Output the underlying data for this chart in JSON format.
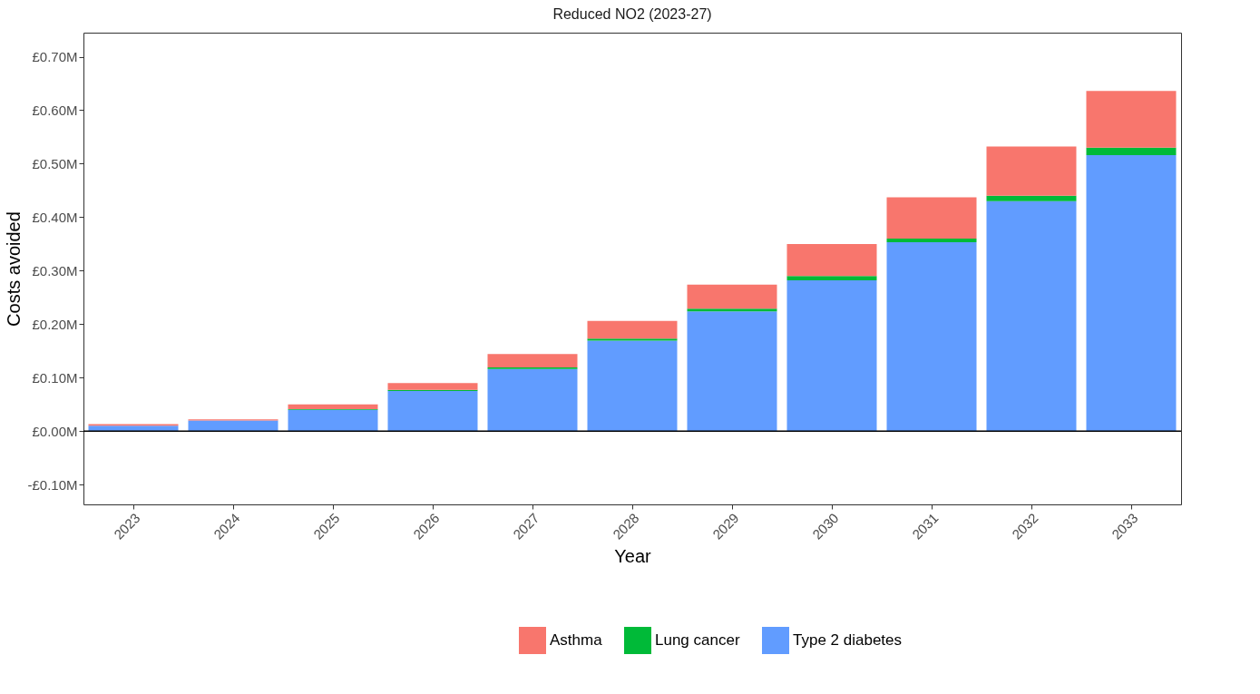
{
  "chart_data": {
    "type": "bar",
    "title": "Reduced NO2 (2023-27)",
    "xlabel": "Year",
    "ylabel": "Costs avoided",
    "categories": [
      "2023",
      "2024",
      "2025",
      "2026",
      "2027",
      "2028",
      "2029",
      "2030",
      "2031",
      "2032",
      "2033"
    ],
    "stacked": true,
    "series": [
      {
        "name": "Type 2 diabetes",
        "color": "#619cff",
        "values": [
          0.01,
          0.02,
          0.04,
          0.075,
          0.116,
          0.169,
          0.224,
          0.282,
          0.353,
          0.43,
          0.516
        ]
      },
      {
        "name": "Lung cancer",
        "color": "#00ba38",
        "values": [
          0.0,
          0.0,
          0.001,
          0.002,
          0.003,
          0.004,
          0.005,
          0.008,
          0.007,
          0.01,
          0.014
        ]
      },
      {
        "name": "Asthma",
        "color": "#f8766d",
        "values": [
          0.003,
          0.002,
          0.009,
          0.013,
          0.025,
          0.033,
          0.045,
          0.06,
          0.077,
          0.092,
          0.106
        ]
      }
    ],
    "ylim": [
      -0.137,
      0.745
    ],
    "yticks": [
      {
        "value": -0.1,
        "label": "-£0.10M"
      },
      {
        "value": 0,
        "label": "£0.00M"
      },
      {
        "value": 0.1,
        "label": "£0.10M"
      },
      {
        "value": 0.2,
        "label": "£0.20M"
      },
      {
        "value": 0.3,
        "label": "£0.30M"
      },
      {
        "value": 0.4,
        "label": "£0.40M"
      },
      {
        "value": 0.5,
        "label": "£0.50M"
      },
      {
        "value": 0.6,
        "label": "£0.60M"
      },
      {
        "value": 0.7,
        "label": "£0.70M"
      }
    ],
    "ref_lines": [
      {
        "axis": "y",
        "value": 0,
        "color": "#000000"
      }
    ],
    "grid": false,
    "legend": "bottom"
  }
}
